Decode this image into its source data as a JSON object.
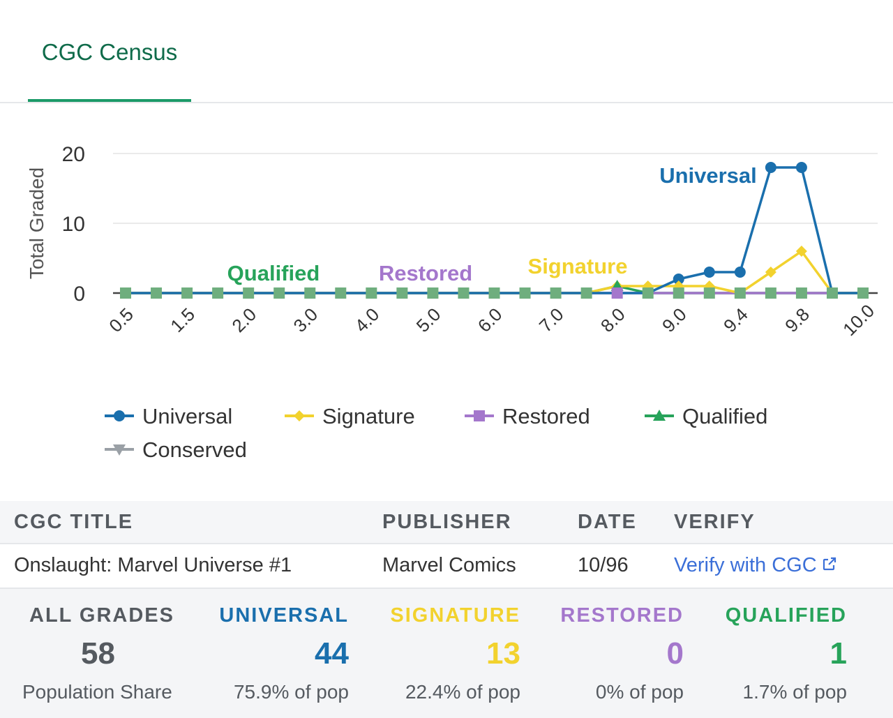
{
  "tabs": {
    "active_label": "CGC Census"
  },
  "chart_data": {
    "type": "line",
    "ylabel": "Total Graded",
    "xlabel": "",
    "ylim": [
      0,
      20
    ],
    "yticks": [
      0,
      10,
      20
    ],
    "grid": true,
    "legend_position": "bottom",
    "x_tick_labels": [
      "0.5",
      "1.5",
      "2.0",
      "3.0",
      "4.0",
      "5.0",
      "6.0",
      "7.0",
      "8.0",
      "9.0",
      "9.4",
      "9.8",
      "10.0"
    ],
    "x": [
      "0.5",
      "1.0",
      "1.5",
      "1.8",
      "2.0",
      "2.5",
      "3.0",
      "3.5",
      "4.0",
      "4.5",
      "5.0",
      "5.5",
      "6.0",
      "6.5",
      "7.0",
      "7.5",
      "8.0",
      "8.5",
      "9.0",
      "9.2",
      "9.4",
      "9.6",
      "9.8",
      "9.9",
      "10.0"
    ],
    "series": [
      {
        "name": "Universal",
        "color": "#1a6fad",
        "marker": "circle",
        "values": [
          0,
          0,
          0,
          0,
          0,
          0,
          0,
          0,
          0,
          0,
          0,
          0,
          0,
          0,
          0,
          0,
          0,
          0,
          2,
          3,
          3,
          18,
          18,
          0,
          0
        ]
      },
      {
        "name": "Signature",
        "color": "#f2d22e",
        "marker": "diamond",
        "values": [
          0,
          0,
          0,
          0,
          0,
          0,
          0,
          0,
          0,
          0,
          0,
          0,
          0,
          0,
          0,
          0,
          1,
          1,
          1,
          1,
          0,
          3,
          6,
          0,
          0
        ]
      },
      {
        "name": "Restored",
        "color": "#a477cc",
        "marker": "square",
        "values": [
          0,
          0,
          0,
          0,
          0,
          0,
          0,
          0,
          0,
          0,
          0,
          0,
          0,
          0,
          0,
          0,
          0,
          0,
          0,
          0,
          0,
          0,
          0,
          0,
          0
        ]
      },
      {
        "name": "Qualified",
        "color": "#27a35a",
        "marker": "triangle",
        "values": [
          0,
          0,
          0,
          0,
          0,
          0,
          0,
          0,
          0,
          0,
          0,
          0,
          0,
          0,
          0,
          0,
          1,
          0,
          0,
          0,
          0,
          0,
          0,
          0,
          0
        ]
      },
      {
        "name": "Conserved",
        "color": "#9aa0a6",
        "marker": "triangle-down",
        "values": [
          0,
          0,
          0,
          0,
          0,
          0,
          0,
          0,
          0,
          0,
          0,
          0,
          0,
          0,
          0,
          0,
          0,
          0,
          0,
          0,
          0,
          0,
          0,
          0,
          0
        ]
      }
    ],
    "annotations": [
      {
        "text": "Universal",
        "color": "#1a6fad"
      },
      {
        "text": "Signature",
        "color": "#f2d22e"
      },
      {
        "text": "Restored",
        "color": "#a477cc"
      },
      {
        "text": "Qualified",
        "color": "#27a35a"
      }
    ]
  },
  "table": {
    "headers": {
      "title": "CGC TITLE",
      "publisher": "PUBLISHER",
      "date": "DATE",
      "verify": "VERIFY"
    },
    "row": {
      "title": "Onslaught: Marvel Universe #1",
      "publisher": "Marvel Comics",
      "date": "10/96",
      "verify": "Verify with CGC",
      "verify_icon": "external-link-icon"
    }
  },
  "stats": [
    {
      "label": "ALL GRADES",
      "value": "58",
      "sub": "Population Share",
      "color": "#555a60"
    },
    {
      "label": "UNIVERSAL",
      "value": "44",
      "sub": "75.9% of pop",
      "color": "#1a6fad"
    },
    {
      "label": "SIGNATURE",
      "value": "13",
      "sub": "22.4% of pop",
      "color": "#f2d22e"
    },
    {
      "label": "RESTORED",
      "value": "0",
      "sub": "0% of pop",
      "color": "#a477cc"
    },
    {
      "label": "QUALIFIED",
      "value": "1",
      "sub": "1.7% of pop",
      "color": "#27a35a"
    }
  ]
}
